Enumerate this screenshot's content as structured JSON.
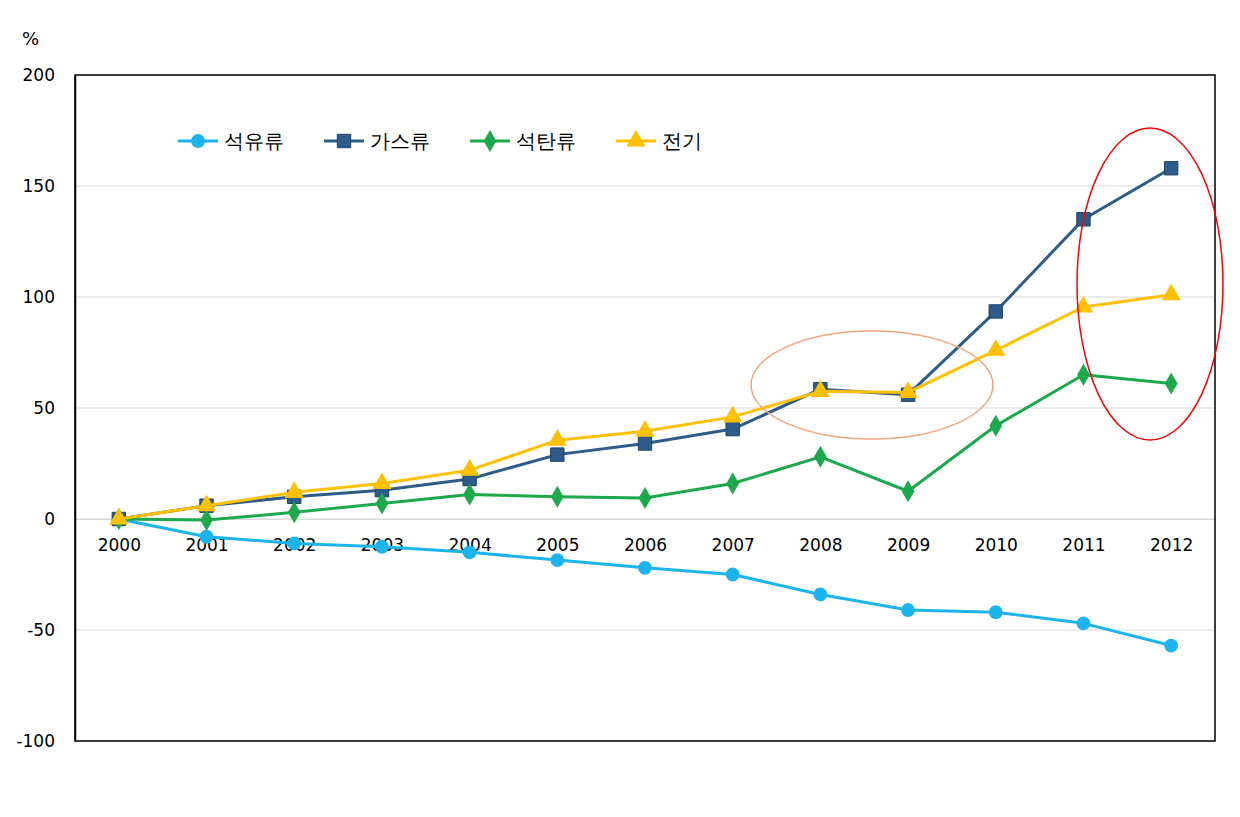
{
  "chart_data": {
    "type": "line",
    "ylabel": "%",
    "categories": [
      "2000",
      "2001",
      "2002",
      "2003",
      "2004",
      "2005",
      "2006",
      "2007",
      "2008",
      "2009",
      "2010",
      "2011",
      "2012"
    ],
    "series": [
      {
        "name": "석유류",
        "color": "#1CB4EC",
        "marker": "circle",
        "values": [
          0,
          -8,
          -11,
          -12.5,
          -15,
          -18.5,
          -22,
          -25,
          -34,
          -41,
          -42,
          -47,
          -57
        ]
      },
      {
        "name": "가스류",
        "color": "#2E5C8A",
        "marker": "square",
        "values": [
          0,
          6,
          10,
          13,
          18,
          29,
          34,
          40.5,
          58.5,
          56,
          93.5,
          135,
          158
        ]
      },
      {
        "name": "석탄류",
        "color": "#1BA94C",
        "marker": "diamond",
        "values": [
          0,
          -0.5,
          3,
          7,
          11,
          10,
          9.5,
          16,
          28,
          12.5,
          42,
          65,
          61
        ]
      },
      {
        "name": "전기",
        "color": "#FFC000",
        "marker": "triangle",
        "values": [
          0,
          6,
          12,
          16,
          22,
          35.5,
          39.5,
          46,
          57.5,
          57,
          76,
          95.5,
          101
        ]
      }
    ],
    "ylim": [
      -100,
      200
    ],
    "yticks": [
      -100,
      -50,
      0,
      50,
      100,
      150,
      200
    ],
    "grid": true,
    "legend": "upper left"
  }
}
